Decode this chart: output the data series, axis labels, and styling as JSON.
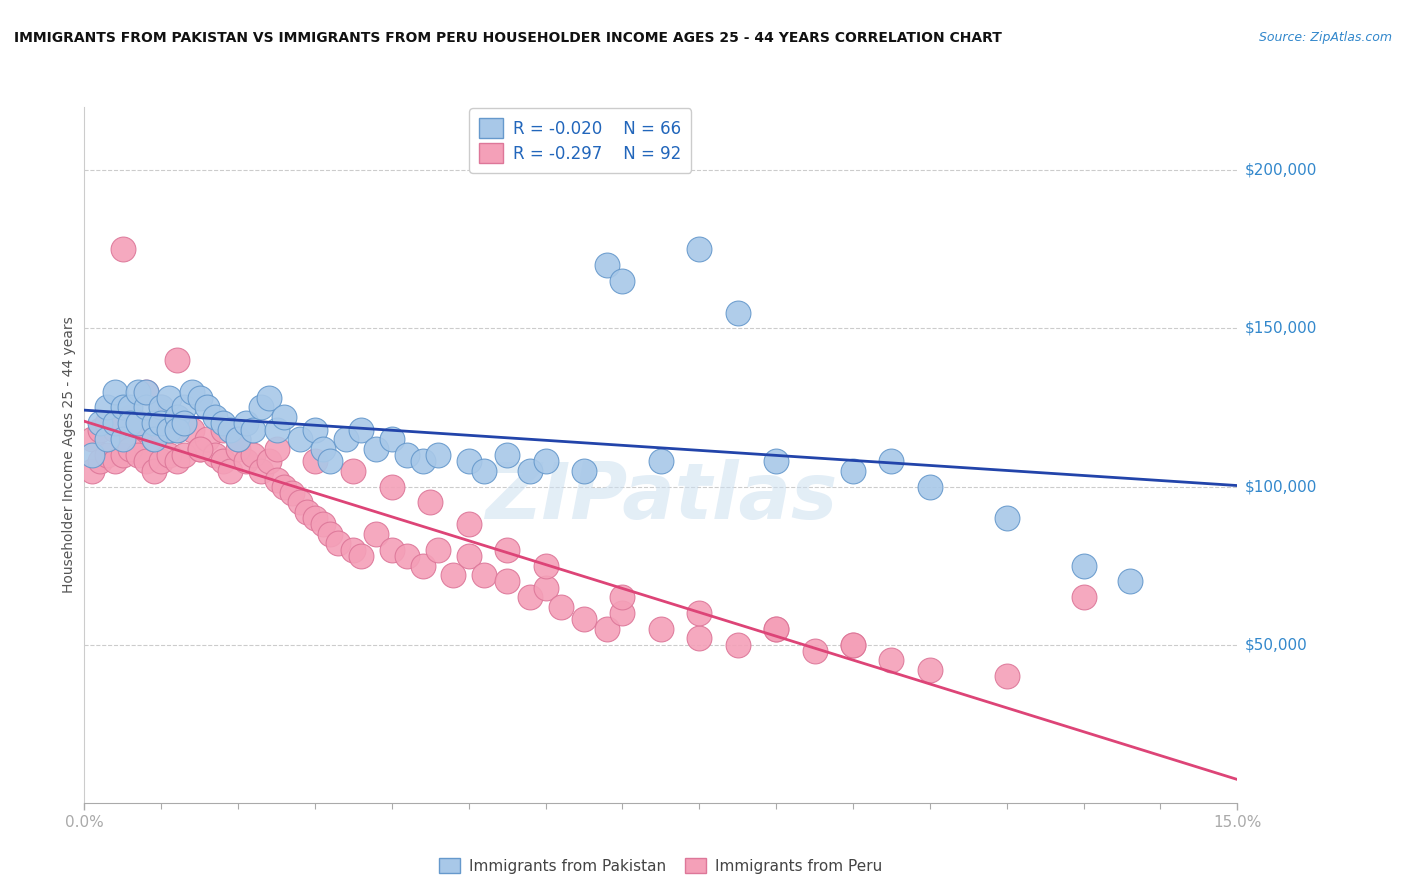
{
  "title": "IMMIGRANTS FROM PAKISTAN VS IMMIGRANTS FROM PERU HOUSEHOLDER INCOME AGES 25 - 44 YEARS CORRELATION CHART",
  "source": "Source: ZipAtlas.com",
  "ylabel": "Householder Income Ages 25 - 44 years",
  "xlim": [
    0.0,
    0.15
  ],
  "ylim": [
    0,
    220000
  ],
  "yticks": [
    50000,
    100000,
    150000,
    200000
  ],
  "ytick_labels": [
    "$50,000",
    "$100,000",
    "$150,000",
    "$200,000"
  ],
  "pakistan_color": "#a8c8e8",
  "pakistan_edge": "#6699cc",
  "pakistan_line_color": "#2244aa",
  "peru_color": "#f4a0b8",
  "peru_edge": "#dd7799",
  "peru_line_color": "#dd4477",
  "pakistan_R": -0.02,
  "pakistan_N": 66,
  "peru_R": -0.297,
  "peru_N": 92,
  "watermark": "ZIPatlas",
  "pakistan_x": [
    0.001,
    0.002,
    0.003,
    0.003,
    0.004,
    0.004,
    0.005,
    0.005,
    0.006,
    0.006,
    0.007,
    0.007,
    0.008,
    0.008,
    0.009,
    0.009,
    0.01,
    0.01,
    0.011,
    0.011,
    0.012,
    0.012,
    0.013,
    0.013,
    0.014,
    0.015,
    0.016,
    0.017,
    0.018,
    0.019,
    0.02,
    0.021,
    0.022,
    0.023,
    0.024,
    0.025,
    0.026,
    0.028,
    0.03,
    0.031,
    0.032,
    0.034,
    0.036,
    0.038,
    0.04,
    0.042,
    0.044,
    0.046,
    0.05,
    0.052,
    0.055,
    0.058,
    0.06,
    0.065,
    0.068,
    0.07,
    0.075,
    0.08,
    0.085,
    0.09,
    0.1,
    0.105,
    0.11,
    0.12,
    0.13,
    0.136
  ],
  "pakistan_y": [
    110000,
    120000,
    125000,
    115000,
    130000,
    120000,
    125000,
    115000,
    125000,
    120000,
    130000,
    120000,
    125000,
    130000,
    120000,
    115000,
    125000,
    120000,
    128000,
    118000,
    122000,
    118000,
    125000,
    120000,
    130000,
    128000,
    125000,
    122000,
    120000,
    118000,
    115000,
    120000,
    118000,
    125000,
    128000,
    118000,
    122000,
    115000,
    118000,
    112000,
    108000,
    115000,
    118000,
    112000,
    115000,
    110000,
    108000,
    110000,
    108000,
    105000,
    110000,
    105000,
    108000,
    105000,
    170000,
    165000,
    108000,
    175000,
    155000,
    108000,
    105000,
    108000,
    100000,
    90000,
    75000,
    70000
  ],
  "peru_x": [
    0.001,
    0.001,
    0.002,
    0.002,
    0.003,
    0.003,
    0.004,
    0.004,
    0.005,
    0.005,
    0.006,
    0.006,
    0.007,
    0.007,
    0.008,
    0.008,
    0.009,
    0.009,
    0.01,
    0.01,
    0.011,
    0.011,
    0.012,
    0.012,
    0.013,
    0.013,
    0.014,
    0.015,
    0.016,
    0.017,
    0.018,
    0.019,
    0.02,
    0.021,
    0.022,
    0.023,
    0.024,
    0.025,
    0.026,
    0.027,
    0.028,
    0.029,
    0.03,
    0.031,
    0.032,
    0.033,
    0.035,
    0.036,
    0.038,
    0.04,
    0.042,
    0.044,
    0.046,
    0.048,
    0.05,
    0.052,
    0.055,
    0.058,
    0.06,
    0.062,
    0.065,
    0.068,
    0.07,
    0.075,
    0.08,
    0.085,
    0.09,
    0.095,
    0.1,
    0.105,
    0.11,
    0.12,
    0.005,
    0.008,
    0.01,
    0.012,
    0.015,
    0.018,
    0.02,
    0.025,
    0.03,
    0.035,
    0.04,
    0.045,
    0.05,
    0.055,
    0.06,
    0.07,
    0.08,
    0.09,
    0.1,
    0.13
  ],
  "peru_y": [
    115000,
    105000,
    118000,
    108000,
    120000,
    110000,
    118000,
    108000,
    120000,
    110000,
    122000,
    112000,
    120000,
    110000,
    118000,
    108000,
    115000,
    105000,
    118000,
    108000,
    120000,
    110000,
    118000,
    108000,
    120000,
    110000,
    118000,
    112000,
    115000,
    110000,
    108000,
    105000,
    112000,
    108000,
    110000,
    105000,
    108000,
    102000,
    100000,
    98000,
    95000,
    92000,
    90000,
    88000,
    85000,
    82000,
    80000,
    78000,
    85000,
    80000,
    78000,
    75000,
    80000,
    72000,
    78000,
    72000,
    70000,
    65000,
    68000,
    62000,
    58000,
    55000,
    60000,
    55000,
    52000,
    50000,
    55000,
    48000,
    50000,
    45000,
    42000,
    40000,
    175000,
    130000,
    125000,
    140000,
    112000,
    118000,
    115000,
    112000,
    108000,
    105000,
    100000,
    95000,
    88000,
    80000,
    75000,
    65000,
    60000,
    55000,
    50000,
    65000
  ]
}
